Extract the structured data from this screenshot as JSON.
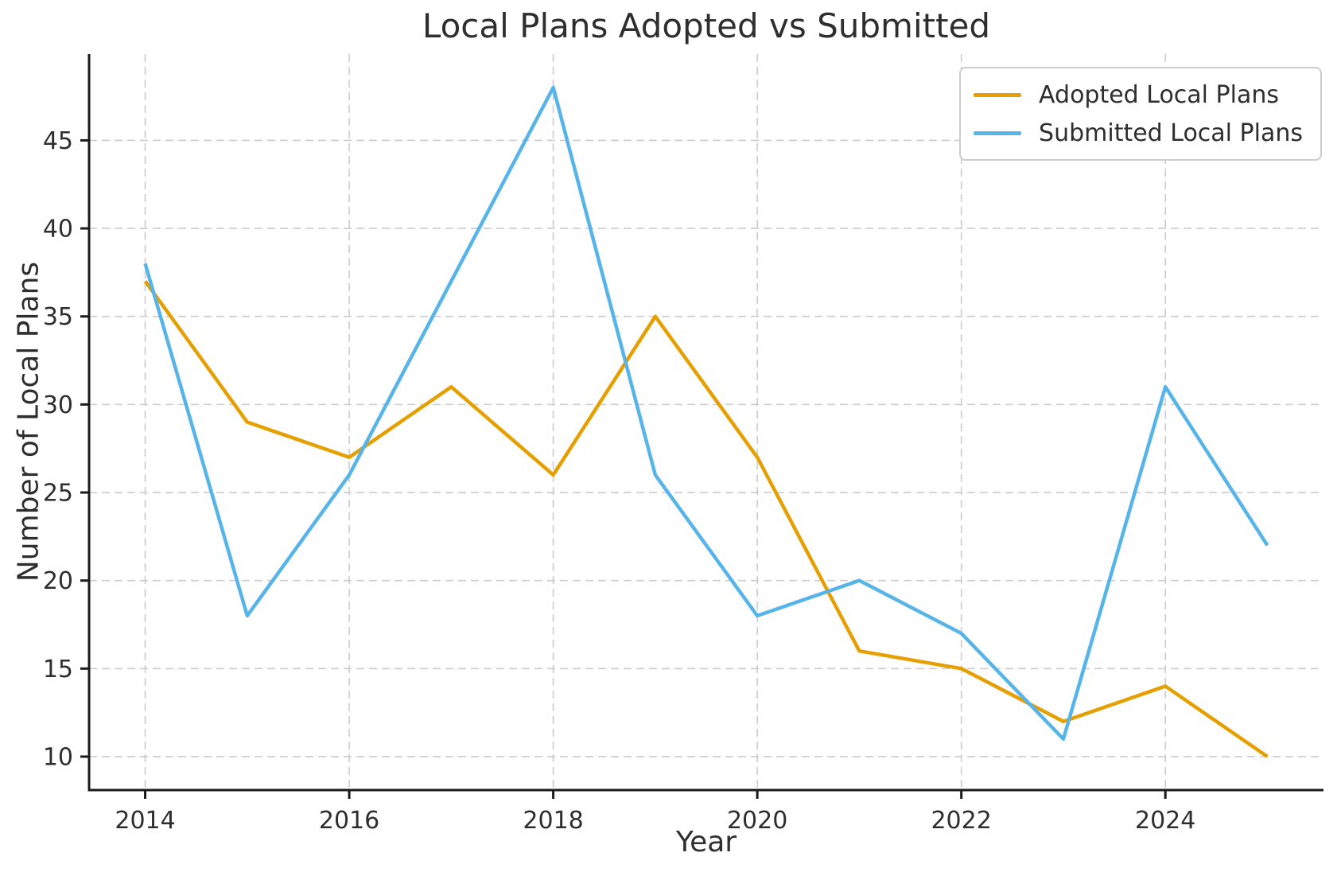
{
  "figure": {
    "title": "Local Plans Adopted vs Submitted",
    "xlabel": "Year",
    "ylabel": "Number of Local Plans"
  },
  "legend": {
    "items": [
      {
        "label": "Adopted Local Plans",
        "color": "#E69F00"
      },
      {
        "label": "Submitted Local Plans",
        "color": "#56B4E9"
      }
    ]
  },
  "chart_data": {
    "type": "line",
    "title": "Local Plans Adopted vs Submitted",
    "xlabel": "Year",
    "ylabel": "Number of Local Plans",
    "x": [
      2014,
      2015,
      2016,
      2017,
      2018,
      2019,
      2020,
      2021,
      2022,
      2023,
      2024,
      2025
    ],
    "series": [
      {
        "name": "Adopted Local Plans",
        "color": "#E69F00",
        "values": [
          37,
          29,
          27,
          31,
          26,
          35,
          27,
          16,
          15,
          12,
          14,
          10
        ]
      },
      {
        "name": "Submitted Local Plans",
        "color": "#56B4E9",
        "values": [
          38,
          18,
          26,
          37,
          48,
          26,
          18,
          20,
          17,
          11,
          31,
          22
        ]
      }
    ],
    "xticks": [
      2014,
      2016,
      2018,
      2020,
      2022,
      2024
    ],
    "yticks": [
      10,
      15,
      20,
      25,
      30,
      35,
      40,
      45
    ],
    "xlim": [
      2013.45,
      2025.55
    ],
    "ylim": [
      8.1,
      49.9
    ],
    "grid": true,
    "grid_style": "dashed",
    "legend_position": "upper right",
    "line_width": 4.5,
    "axis_color": "#1a1a1a",
    "grid_color": "#cccccc"
  }
}
